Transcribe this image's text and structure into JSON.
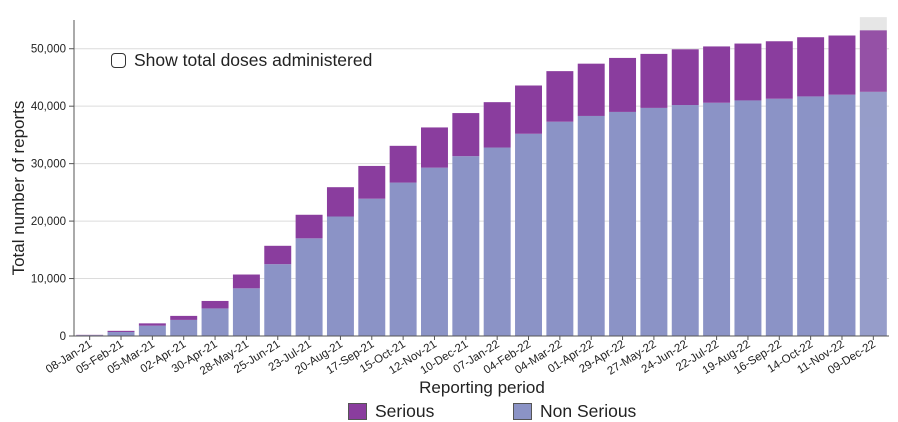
{
  "toggle": {
    "label": "Show total doses administered",
    "checked": false
  },
  "legend": {
    "serious": {
      "label": "Serious",
      "color": "#8a3d9e"
    },
    "non_serious": {
      "label": "Non Serious",
      "color": "#8b93c6"
    }
  },
  "chart_data": {
    "type": "bar",
    "stacked": true,
    "xlabel": "Reporting period",
    "ylabel": "Total number of reports",
    "ylim": [
      0,
      55000
    ],
    "yticks": [
      0,
      10000,
      20000,
      30000,
      40000,
      50000
    ],
    "ytick_labels": [
      "0",
      "10,000",
      "20,000",
      "30,000",
      "40,000",
      "50,000"
    ],
    "grid": true,
    "legend_position": "bottom",
    "highlighted_category": "09-Dec-22",
    "categories": [
      "08-Jan-21",
      "05-Feb-21",
      "05-Mar-21",
      "02-Apr-21",
      "30-Apr-21",
      "28-May-21",
      "25-Jun-21",
      "23-Jul-21",
      "20-Aug-21",
      "17-Sep-21",
      "15-Oct-21",
      "12-Nov-21",
      "10-Dec-21",
      "07-Jan-22",
      "04-Feb-22",
      "04-Mar-22",
      "01-Apr-22",
      "29-Apr-22",
      "27-May-22",
      "24-Jun-22",
      "22-Jul-22",
      "19-Aug-22",
      "16-Sep-22",
      "14-Oct-22",
      "11-Nov-22",
      "09-Dec-22"
    ],
    "series": [
      {
        "name": "Non Serious",
        "color": "#8b93c6",
        "values": [
          150,
          700,
          1800,
          2800,
          4800,
          8300,
          12500,
          17000,
          20800,
          23900,
          26700,
          29300,
          31300,
          32800,
          35200,
          37300,
          38300,
          39000,
          39700,
          40200,
          40600,
          41000,
          41300,
          41700,
          42000,
          42500
        ]
      },
      {
        "name": "Serious",
        "color": "#8a3d9e",
        "values": [
          50,
          200,
          400,
          700,
          1300,
          2400,
          3200,
          4100,
          5100,
          5700,
          6400,
          7000,
          7500,
          7900,
          8400,
          8800,
          9100,
          9400,
          9400,
          9700,
          9800,
          9900,
          10000,
          10300,
          10300,
          10700
        ]
      }
    ]
  }
}
